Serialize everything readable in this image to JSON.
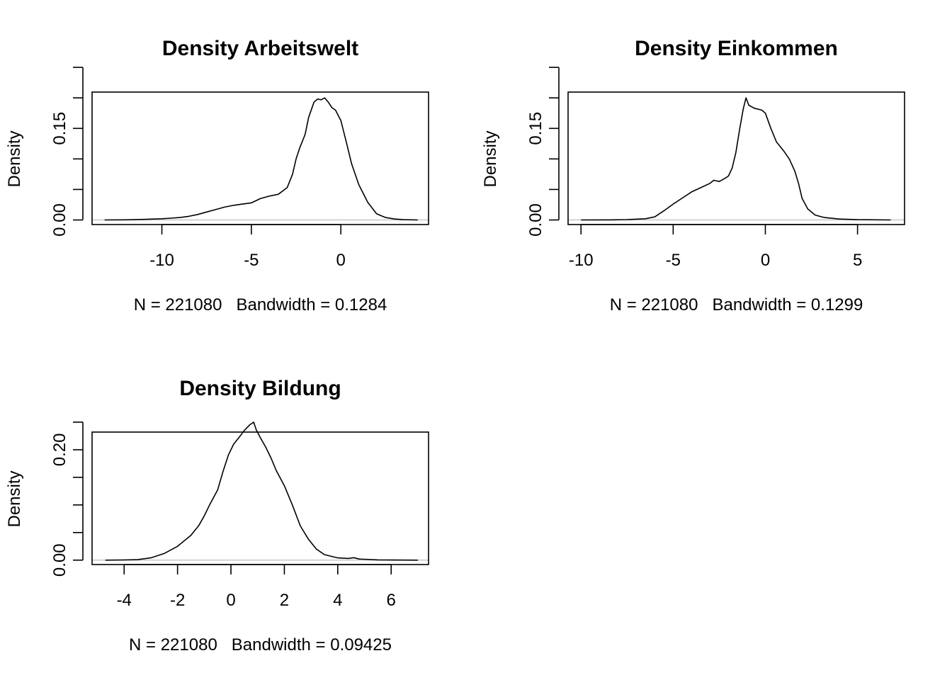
{
  "chart_data": [
    {
      "type": "line",
      "title": "Density Arbeitswelt",
      "ylabel": "Density",
      "xlabel": "N = 221080   Bandwidth = 0.1284",
      "xlim": [
        -13.9,
        4.9
      ],
      "ylim": [
        -0.0075,
        0.2095
      ],
      "x_ticks": [
        -10,
        -5,
        0
      ],
      "x_tick_labels": [
        "-10",
        "-5",
        "0"
      ],
      "y_ticks": [
        0,
        0.05,
        0.1,
        0.15,
        0.2,
        0.25
      ],
      "y_tick_labels": [
        "0.00",
        "",
        "",
        "0.15",
        "",
        ""
      ],
      "grid": false,
      "baseline": 0,
      "series": [
        {
          "x": [
            -13.2,
            -12,
            -11,
            -10,
            -9.5,
            -9,
            -8.5,
            -8,
            -7.5,
            -7,
            -6.5,
            -6,
            -5.5,
            -5,
            -4.5,
            -4,
            -3.5,
            -3,
            -2.7,
            -2.5,
            -2.3,
            -2,
            -1.8,
            -1.5,
            -1.3,
            -1.1,
            -0.9,
            -0.7,
            -0.5,
            -0.3,
            0,
            0.3,
            0.6,
            1,
            1.5,
            2,
            2.5,
            3,
            3.5,
            4.3
          ],
          "y": [
            0.0,
            0.0003,
            0.001,
            0.002,
            0.003,
            0.004,
            0.006,
            0.009,
            0.013,
            0.017,
            0.021,
            0.024,
            0.026,
            0.028,
            0.035,
            0.039,
            0.042,
            0.053,
            0.075,
            0.1,
            0.118,
            0.14,
            0.168,
            0.193,
            0.198,
            0.197,
            0.2,
            0.193,
            0.184,
            0.18,
            0.163,
            0.128,
            0.092,
            0.058,
            0.029,
            0.01,
            0.004,
            0.0015,
            0.0005,
            0.0
          ]
        }
      ]
    },
    {
      "type": "line",
      "title": "Density Einkommen",
      "ylabel": "Density",
      "xlabel": "N = 221080   Bandwidth = 0.1299",
      "xlim": [
        -10.7,
        7.55
      ],
      "ylim": [
        -0.0075,
        0.2095
      ],
      "x_ticks": [
        -10,
        -5,
        0,
        5
      ],
      "x_tick_labels": [
        "-10",
        "-5",
        "0",
        "5"
      ],
      "y_ticks": [
        0,
        0.05,
        0.1,
        0.15,
        0.2,
        0.25
      ],
      "y_tick_labels": [
        "0.00",
        "",
        "",
        "0.15",
        "",
        ""
      ],
      "grid": false,
      "baseline": 0,
      "series": [
        {
          "x": [
            -10,
            -8.5,
            -7.5,
            -6.5,
            -6,
            -5.5,
            -5,
            -4.5,
            -4,
            -3.5,
            -3,
            -2.8,
            -2.5,
            -2.2,
            -2,
            -1.8,
            -1.6,
            -1.4,
            -1.2,
            -1.05,
            -0.9,
            -0.6,
            -0.2,
            0,
            0.3,
            0.6,
            1,
            1.3,
            1.6,
            1.8,
            2,
            2.3,
            2.7,
            3.2,
            4,
            5,
            6.8
          ],
          "y": [
            0.0,
            0.0002,
            0.0006,
            0.002,
            0.005,
            0.015,
            0.026,
            0.036,
            0.046,
            0.053,
            0.06,
            0.065,
            0.063,
            0.068,
            0.072,
            0.085,
            0.11,
            0.148,
            0.182,
            0.2,
            0.188,
            0.183,
            0.18,
            0.175,
            0.15,
            0.128,
            0.113,
            0.1,
            0.08,
            0.06,
            0.035,
            0.018,
            0.008,
            0.004,
            0.0015,
            0.0005,
            0.0
          ]
        }
      ]
    },
    {
      "type": "line",
      "title": "Density Bildung",
      "ylabel": "Density",
      "xlabel": "N = 221080   Bandwidth = 0.09425",
      "xlim": [
        -5.2,
        7.4
      ],
      "ylim": [
        -0.008,
        0.232
      ],
      "x_ticks": [
        -4,
        -2,
        0,
        2,
        4,
        6
      ],
      "x_tick_labels": [
        "-4",
        "-2",
        "0",
        "2",
        "4",
        "6"
      ],
      "y_ticks": [
        0,
        0.05,
        0.1,
        0.15,
        0.2,
        0.25
      ],
      "y_tick_labels": [
        "0.00",
        "",
        "",
        "",
        "0.20",
        ""
      ],
      "grid": false,
      "baseline": 0,
      "series": [
        {
          "x": [
            -4.7,
            -4,
            -3.5,
            -3,
            -2.5,
            -2,
            -1.5,
            -1.2,
            -1,
            -0.8,
            -0.5,
            -0.3,
            -0.1,
            0.1,
            0.3,
            0.5,
            0.7,
            0.85,
            0.95,
            1.1,
            1.3,
            1.5,
            1.7,
            2,
            2.3,
            2.6,
            2.9,
            3.2,
            3.5,
            4,
            4.4,
            4.6,
            4.8,
            5.5,
            7
          ],
          "y": [
            0.0,
            0.0004,
            0.0008,
            0.004,
            0.012,
            0.025,
            0.045,
            0.063,
            0.08,
            0.1,
            0.127,
            0.16,
            0.19,
            0.21,
            0.222,
            0.235,
            0.245,
            0.25,
            0.236,
            0.222,
            0.205,
            0.185,
            0.162,
            0.135,
            0.1,
            0.062,
            0.038,
            0.02,
            0.01,
            0.004,
            0.003,
            0.0045,
            0.002,
            0.0005,
            0.0
          ]
        }
      ]
    }
  ]
}
